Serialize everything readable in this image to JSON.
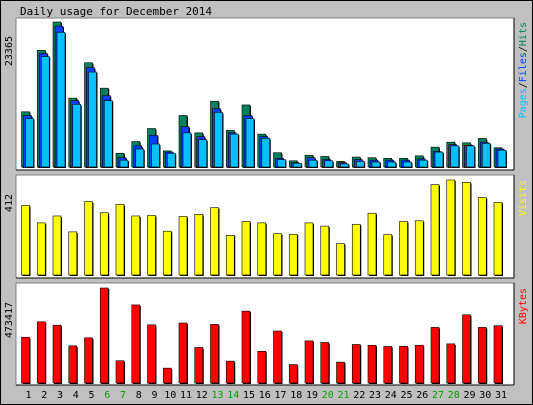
{
  "title": "Daily usage for December 2014",
  "colors": {
    "background": "#C0C0C0",
    "panel": "#FFFFFF",
    "hits": "#00805C",
    "files": "#0040FF",
    "pages": "#00C0FF",
    "visits": "#FFFF00",
    "kbytes": "#FF0000",
    "weekday_label": "#000000",
    "weekend_label": "#00A000"
  },
  "chart_data": [
    {
      "type": "bar",
      "panel": "hits-files-pages",
      "max_label": "23365",
      "legend": [
        "Pages",
        "/",
        "Files",
        "/",
        "Hits"
      ],
      "ylim": [
        0,
        23365
      ],
      "categories": [
        "1",
        "2",
        "3",
        "4",
        "5",
        "6",
        "7",
        "8",
        "9",
        "10",
        "11",
        "12",
        "13",
        "14",
        "15",
        "16",
        "17",
        "18",
        "19",
        "20",
        "21",
        "22",
        "23",
        "24",
        "25",
        "26",
        "27",
        "28",
        "29",
        "30",
        "31"
      ],
      "weekend_days": [
        6,
        7,
        13,
        14,
        20,
        21,
        27,
        28
      ],
      "series": [
        {
          "name": "Hits",
          "values": [
            8900,
            18800,
            23365,
            11100,
            16800,
            12700,
            2200,
            4100,
            6200,
            2600,
            8300,
            5500,
            10600,
            5900,
            10000,
            5300,
            2300,
            1000,
            1900,
            1700,
            900,
            1600,
            1500,
            1400,
            1400,
            1800,
            3200,
            4000,
            3900,
            4600,
            3100
          ]
        },
        {
          "name": "Files",
          "values": [
            8300,
            18300,
            22700,
            10700,
            16000,
            11500,
            1500,
            3400,
            5100,
            2400,
            6500,
            4900,
            9400,
            5500,
            8300,
            4900,
            1400,
            700,
            1500,
            1200,
            700,
            1200,
            1100,
            1100,
            1100,
            1300,
            2500,
            3600,
            3500,
            4000,
            2900
          ]
        },
        {
          "name": "Pages",
          "values": [
            7800,
            17800,
            21700,
            10100,
            15300,
            10700,
            1100,
            2900,
            3700,
            2200,
            5500,
            4400,
            8800,
            5300,
            7800,
            4600,
            1200,
            600,
            1100,
            1000,
            500,
            900,
            800,
            800,
            800,
            1100,
            2400,
            3400,
            3400,
            3800,
            2700
          ]
        }
      ]
    },
    {
      "type": "bar",
      "panel": "visits",
      "max_label": "412",
      "legend": [
        "Visits"
      ],
      "ylim": [
        0,
        412
      ],
      "categories": [
        "1",
        "2",
        "3",
        "4",
        "5",
        "6",
        "7",
        "8",
        "9",
        "10",
        "11",
        "12",
        "13",
        "14",
        "15",
        "16",
        "17",
        "18",
        "19",
        "20",
        "21",
        "22",
        "23",
        "24",
        "25",
        "26",
        "27",
        "28",
        "29",
        "30",
        "31"
      ],
      "series": [
        {
          "name": "Visits",
          "values": [
            302,
            226,
            256,
            187,
            318,
            270,
            306,
            256,
            258,
            190,
            254,
            263,
            292,
            172,
            232,
            226,
            179,
            176,
            226,
            212,
            136,
            220,
            268,
            175,
            232,
            235,
            392,
            412,
            402,
            336,
            315
          ]
        }
      ]
    },
    {
      "type": "bar",
      "panel": "kbytes",
      "max_label": "473417",
      "legend": [
        "KBytes"
      ],
      "ylim": [
        0,
        473417
      ],
      "categories": [
        "1",
        "2",
        "3",
        "4",
        "5",
        "6",
        "7",
        "8",
        "9",
        "10",
        "11",
        "12",
        "13",
        "14",
        "15",
        "16",
        "17",
        "18",
        "19",
        "20",
        "21",
        "22",
        "23",
        "24",
        "25",
        "26",
        "27",
        "28",
        "29",
        "30",
        "31"
      ],
      "series": [
        {
          "name": "KBytes",
          "values": [
            228000,
            305000,
            288000,
            185000,
            225000,
            473417,
            111000,
            389000,
            290000,
            74000,
            299000,
            177000,
            292000,
            109000,
            358000,
            158000,
            259000,
            92000,
            210000,
            202000,
            104000,
            192000,
            188000,
            182000,
            183000,
            188000,
            277000,
            195000,
            340000,
            277000,
            286000
          ]
        }
      ]
    }
  ]
}
